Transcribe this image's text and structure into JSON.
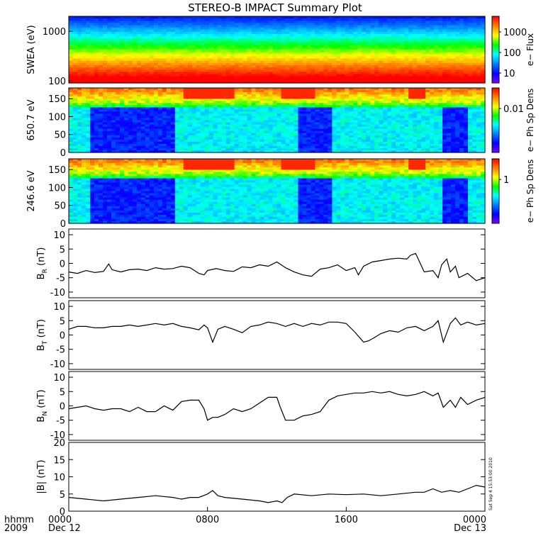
{
  "chart_data": {
    "type": "line",
    "title": "STEREO-B IMPACT Summary Plot",
    "x_axis": {
      "range_hours": [
        0,
        24
      ],
      "ticks": [
        {
          "hour": 0,
          "label": "0000",
          "sub": "Dec 12"
        },
        {
          "hour": 8,
          "label": "0800",
          "sub": ""
        },
        {
          "hour": 16,
          "label": "1600",
          "sub": ""
        },
        {
          "hour": 24,
          "label": "0000",
          "sub": "Dec 13"
        }
      ],
      "left_label_top": "hhmm",
      "left_label_bottom": "2009"
    },
    "timestamp": "Sat Sep  4 15:53:00 2010",
    "spectrograms": [
      {
        "id": "swea",
        "ylabel": "SWEA (eV)",
        "y_scale": "log",
        "ylim": [
          90,
          2000
        ],
        "yticks": [
          "1000",
          "100"
        ],
        "colorbar_label": "e− Flux",
        "colorbar_ticks": [
          "1000",
          "100",
          "10"
        ],
        "colormap": [
          "#ff0000",
          "#ff8000",
          "#ffff00",
          "#00ff00",
          "#00ffff",
          "#0080ff",
          "#0000ff",
          "#8000ff"
        ]
      },
      {
        "id": "pad650",
        "ylabel": "650.7 eV",
        "y_scale": "linear",
        "ylim": [
          0,
          180
        ],
        "yticks": [
          "150",
          "100",
          "50",
          "0"
        ],
        "colorbar_label": "e− Ph Sp Dens",
        "colorbar_ticks": [
          "0.01"
        ],
        "colormap": [
          "#ff0000",
          "#ff8000",
          "#ffff00",
          "#00ff00",
          "#00ffff",
          "#0080ff",
          "#0000ff",
          "#8000ff"
        ]
      },
      {
        "id": "pad246",
        "ylabel": "246.6 eV",
        "y_scale": "linear",
        "ylim": [
          0,
          180
        ],
        "yticks": [
          "150",
          "100",
          "50",
          "0"
        ],
        "colorbar_label": "e− Ph Sp Dens",
        "colorbar_ticks": [
          "1"
        ],
        "colormap": [
          "#ff0000",
          "#ff8000",
          "#ffff00",
          "#00ff00",
          "#00ffff",
          "#0080ff",
          "#0000ff",
          "#8000ff"
        ]
      }
    ],
    "line_panels": [
      {
        "id": "br",
        "ylabel": "B",
        "ylabel_sub": "R",
        "ylabel_unit": " (nT)",
        "ylim": [
          -12,
          12
        ],
        "yticks": [
          10,
          5,
          0,
          -5,
          -10
        ],
        "x": [
          0,
          0.5,
          1,
          1.5,
          2,
          2.3,
          2.5,
          3,
          3.5,
          4,
          4.5,
          5,
          5.5,
          6,
          6.5,
          7,
          7.5,
          7.8,
          8,
          8.5,
          9,
          9.5,
          10,
          10.5,
          11,
          11.5,
          12,
          12.5,
          13,
          13.5,
          14,
          14.5,
          15,
          15.5,
          16,
          16.5,
          16.7,
          17,
          17.5,
          18,
          18.5,
          19,
          19.5,
          19.7,
          20,
          20.5,
          21,
          21.3,
          21.5,
          21.8,
          22,
          22.3,
          22.5,
          23,
          23.5,
          24
        ],
        "y": [
          -3,
          -3.5,
          -2.5,
          -3.2,
          -2.8,
          -0.2,
          -2.2,
          -3,
          -2.2,
          -2,
          -2.5,
          -1.5,
          -2,
          -1.8,
          -1,
          -1.5,
          -3.5,
          -4,
          -2.5,
          -1.8,
          -2.5,
          -2.8,
          -1.2,
          -1.5,
          -0.5,
          -1,
          0.5,
          -1.5,
          -3,
          -4,
          -4.5,
          -2,
          -1.5,
          -0.5,
          -2.5,
          -1.5,
          -4,
          -1,
          0.5,
          1,
          1.5,
          1.8,
          1.5,
          2.8,
          3.5,
          -3,
          -2.5,
          -5,
          -0.5,
          1.5,
          -3,
          -1,
          -5,
          -3.5,
          -6,
          -5
        ]
      },
      {
        "id": "bt",
        "ylabel": "B",
        "ylabel_sub": "T",
        "ylabel_unit": " (nT)",
        "ylim": [
          -12,
          12
        ],
        "yticks": [
          10,
          5,
          0,
          -5,
          -10
        ],
        "x": [
          0,
          0.5,
          1,
          1.5,
          2,
          2.5,
          3,
          3.5,
          4,
          4.5,
          5,
          5.5,
          6,
          6.5,
          7,
          7.5,
          7.8,
          8,
          8.3,
          8.6,
          9,
          9.5,
          10,
          10.5,
          11,
          11.5,
          12,
          12.5,
          13,
          13.5,
          14,
          14.5,
          15,
          15.5,
          16,
          16.5,
          17,
          17.3,
          17.6,
          18,
          18.5,
          19,
          19.5,
          20,
          20.5,
          21,
          21.3,
          21.6,
          22,
          22.3,
          22.6,
          23,
          23.5,
          24
        ],
        "y": [
          2,
          3,
          3,
          2.5,
          2.5,
          3,
          3,
          3.5,
          3,
          3.5,
          4,
          3.5,
          4,
          3,
          2.5,
          1.8,
          3.5,
          2.5,
          -2.5,
          2,
          3,
          2,
          0.8,
          3,
          3.5,
          4.5,
          4,
          3,
          4,
          3,
          4,
          3.5,
          4.5,
          4.5,
          4,
          1,
          -2.5,
          -2,
          -1,
          0.5,
          1.5,
          1,
          2.5,
          3,
          1.5,
          3,
          5,
          -2.5,
          4,
          6,
          3.5,
          4.5,
          3.5,
          4
        ]
      },
      {
        "id": "bn",
        "ylabel": "B",
        "ylabel_sub": "N",
        "ylabel_unit": " (nT)",
        "ylim": [
          -12,
          12
        ],
        "yticks": [
          10,
          5,
          0,
          -5,
          -10
        ],
        "x": [
          0,
          0.5,
          1,
          1.5,
          2,
          2.5,
          3,
          3.5,
          4,
          4.5,
          5,
          5.5,
          6,
          6.5,
          7,
          7.5,
          7.8,
          8,
          8.3,
          8.6,
          9,
          9.5,
          10,
          10.5,
          11,
          11.5,
          12,
          12.2,
          12.5,
          13,
          13.5,
          14,
          14.5,
          15,
          15.5,
          16,
          16.5,
          17,
          17.5,
          18,
          18.5,
          19,
          19.5,
          20,
          20.5,
          21,
          21.3,
          21.6,
          22,
          22.3,
          22.6,
          23,
          23.5,
          24
        ],
        "y": [
          -1,
          -0.5,
          0,
          -1,
          -1.5,
          -1,
          -1,
          -2,
          -0.5,
          -2,
          -2,
          0,
          -1.5,
          1.5,
          2,
          2,
          -1,
          -5,
          -4,
          -4,
          -3,
          -1,
          -2,
          -1,
          1,
          3,
          3,
          -0.5,
          -5,
          -5,
          -3.5,
          -3,
          -2,
          2,
          3.5,
          4,
          4.5,
          4.5,
          5,
          4.5,
          5,
          4,
          3.5,
          4,
          5,
          3.5,
          4.5,
          -0.5,
          2,
          -0.5,
          3,
          0.5,
          2,
          3
        ]
      },
      {
        "id": "bmag",
        "ylabel": "|B|",
        "ylabel_sub": "",
        "ylabel_unit": " (nT)",
        "ylim": [
          0,
          20
        ],
        "yticks": [
          20,
          15,
          10,
          5,
          0
        ],
        "x": [
          0,
          1,
          2,
          3,
          4,
          5,
          6,
          6.5,
          7,
          7.5,
          8,
          8.3,
          8.6,
          9,
          10,
          11,
          11.5,
          12,
          12.3,
          12.6,
          13,
          14,
          15,
          16,
          17,
          18,
          19,
          20,
          20.5,
          21,
          21.5,
          22,
          22.5,
          23,
          23.5,
          24
        ],
        "y": [
          4,
          3.5,
          3,
          3.5,
          4,
          4.5,
          4,
          3.5,
          4,
          4,
          5,
          6,
          4.5,
          4,
          3.5,
          3,
          2.5,
          3,
          2.5,
          4,
          5,
          4.5,
          5,
          4.8,
          5,
          4.5,
          5,
          5.5,
          5.5,
          6.5,
          5.5,
          6,
          5.5,
          6.5,
          7.5,
          7
        ]
      }
    ]
  }
}
